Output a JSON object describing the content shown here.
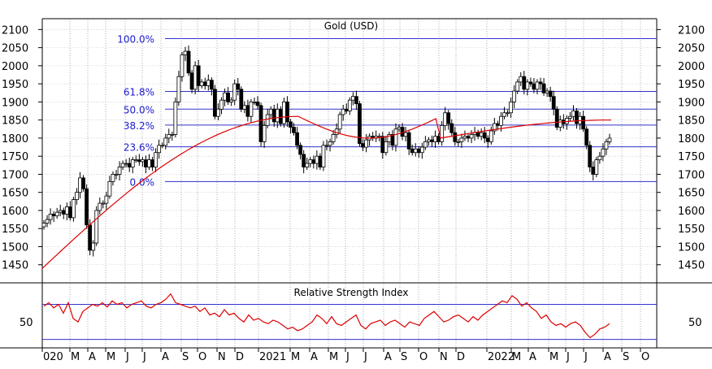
{
  "chart_data": [
    {
      "type": "candlestick",
      "title": "Gold (USD)",
      "ylim": [
        1400,
        2130
      ],
      "y_ticks": [
        1450,
        1500,
        1550,
        1600,
        1650,
        1700,
        1750,
        1800,
        1850,
        1900,
        1950,
        2000,
        2050,
        2100
      ],
      "grid": true,
      "fibonacci": [
        {
          "label": "100.0%",
          "value": 2075
        },
        {
          "label": "61.8%",
          "value": 1929
        },
        {
          "label": "50.0%",
          "value": 1880
        },
        {
          "label": "38.2%",
          "value": 1836
        },
        {
          "label": "23.6%",
          "value": 1776
        },
        {
          "label": "0.0%",
          "value": 1680
        }
      ],
      "weekly_close": [
        1565,
        1575,
        1590,
        1585,
        1595,
        1600,
        1590,
        1610,
        1580,
        1630,
        1650,
        1690,
        1660,
        1560,
        1490,
        1510,
        1600,
        1620,
        1620,
        1640,
        1680,
        1700,
        1700,
        1720,
        1730,
        1730,
        1720,
        1740,
        1740,
        1735,
        1740,
        1720,
        1740,
        1720,
        1760,
        1780,
        1780,
        1800,
        1810,
        1810,
        1900,
        1970,
        2030,
        2040,
        1980,
        1935,
        2000,
        1945,
        1955,
        1945,
        1960,
        1935,
        1860,
        1880,
        1905,
        1925,
        1900,
        1905,
        1950,
        1935,
        1880,
        1890,
        1860,
        1900,
        1900,
        1890,
        1790,
        1835,
        1865,
        1880,
        1845,
        1880,
        1840,
        1900,
        1845,
        1830,
        1815,
        1780,
        1755,
        1720,
        1730,
        1740,
        1730,
        1750,
        1720,
        1780,
        1780,
        1790,
        1810,
        1825,
        1865,
        1880,
        1875,
        1905,
        1915,
        1895,
        1785,
        1775,
        1795,
        1805,
        1800,
        1805,
        1805,
        1760,
        1790,
        1810,
        1780,
        1825,
        1830,
        1805,
        1815,
        1770,
        1760,
        1770,
        1760,
        1775,
        1790,
        1795,
        1790,
        1805,
        1790,
        1835,
        1870,
        1840,
        1815,
        1790,
        1790,
        1800,
        1805,
        1800,
        1810,
        1815,
        1805,
        1815,
        1800,
        1790,
        1820,
        1840,
        1835,
        1860,
        1870,
        1870,
        1900,
        1930,
        1955,
        1970,
        1935,
        1955,
        1950,
        1935,
        1955,
        1950,
        1925,
        1930,
        1915,
        1880,
        1830,
        1850,
        1840,
        1855,
        1860,
        1875,
        1840,
        1860,
        1825,
        1780,
        1720,
        1700,
        1740,
        1750,
        1770,
        1790,
        1800
      ],
      "ma_line": {
        "start": 1440,
        "end": 1845,
        "peak": 1860
      },
      "x_labels": [
        "020",
        "M",
        "A",
        "M",
        "J",
        "J",
        "A",
        "S",
        "O",
        "N",
        "D",
        "2021",
        "M",
        "A",
        "M",
        "J",
        "J",
        "A",
        "S",
        "O",
        "N",
        "D",
        "2022",
        "M",
        "A",
        "M",
        "J",
        "J",
        "A",
        "S",
        "O"
      ]
    },
    {
      "type": "line",
      "title": "Relative Strength Index",
      "y_ticks": [
        50
      ],
      "levels": [
        70,
        30
      ],
      "values": [
        68,
        72,
        66,
        70,
        60,
        72,
        54,
        50,
        62,
        66,
        70,
        68,
        72,
        67,
        74,
        70,
        72,
        66,
        70,
        72,
        74,
        68,
        66,
        70,
        72,
        76,
        82,
        72,
        70,
        68,
        66,
        68,
        62,
        66,
        58,
        60,
        56,
        64,
        58,
        60,
        54,
        50,
        58,
        52,
        54,
        50,
        48,
        52,
        50,
        46,
        42,
        44,
        40,
        42,
        46,
        50,
        58,
        54,
        48,
        56,
        48,
        46,
        50,
        54,
        58,
        46,
        42,
        48,
        50,
        52,
        46,
        50,
        52,
        48,
        44,
        50,
        48,
        46,
        54,
        58,
        62,
        56,
        50,
        52,
        56,
        58,
        54,
        50,
        56,
        52,
        58,
        62,
        66,
        70,
        74,
        72,
        80,
        76,
        68,
        72,
        66,
        62,
        54,
        58,
        50,
        46,
        48,
        44,
        48,
        50,
        46,
        38,
        32,
        36,
        42,
        44,
        48
      ]
    }
  ]
}
